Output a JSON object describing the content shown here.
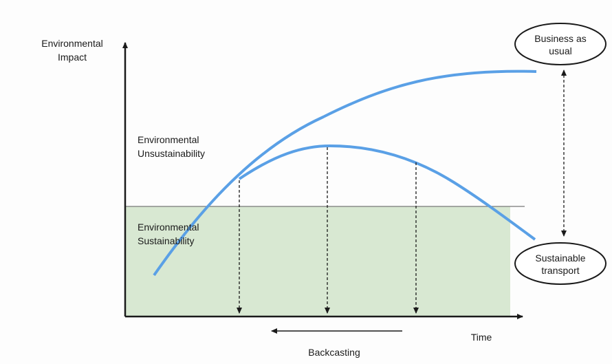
{
  "y_axis_label": [
    "Environmental",
    "Impact"
  ],
  "x_axis_label": "Time",
  "regions": {
    "unsustainability": [
      "Environmental",
      "Unsustainability"
    ],
    "sustainability": [
      "Environmental",
      "Sustainability"
    ]
  },
  "nodes": [
    {
      "label": [
        "Business as",
        "usual"
      ]
    },
    {
      "label": [
        "Sustainable",
        "transport"
      ]
    }
  ],
  "arrow_label": "Backcasting"
}
